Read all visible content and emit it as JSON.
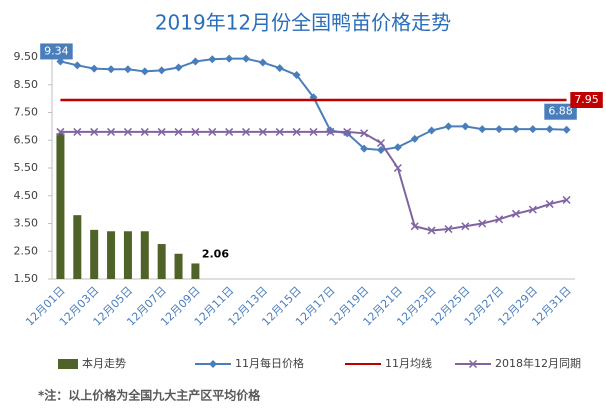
{
  "chart_data": {
    "type": "combo",
    "title": "2019年12月份全国鸭苗价格走势",
    "categories": [
      "12月01日",
      null,
      "12月03日",
      null,
      "12月05日",
      null,
      "12月07日",
      null,
      "12月09日",
      null,
      "12月11日",
      null,
      "12月13日",
      null,
      "12月15日",
      null,
      "12月17日",
      null,
      "12月19日",
      null,
      "12月21日",
      null,
      "12月23日",
      null,
      "12月25日",
      null,
      "12月27日",
      null,
      "12月29日",
      null,
      "12月31日"
    ],
    "series": [
      {
        "name": "本月走势",
        "type": "bar",
        "color": "#4f6228",
        "values": [
          6.75,
          3.8,
          3.27,
          3.22,
          3.22,
          3.22,
          2.76,
          2.41,
          2.06,
          null,
          null,
          null,
          null,
          null,
          null,
          null,
          null,
          null,
          null,
          null,
          null,
          null,
          null,
          null,
          null,
          null,
          null,
          null,
          null,
          null,
          null
        ]
      },
      {
        "name": "11月每日价格",
        "type": "line",
        "color": "#4a7ebb",
        "values": [
          9.34,
          9.2,
          9.08,
          9.06,
          9.06,
          8.98,
          9.02,
          9.12,
          9.34,
          9.42,
          9.44,
          9.44,
          9.3,
          9.1,
          8.85,
          8.05,
          6.85,
          6.75,
          6.2,
          6.15,
          6.25,
          6.55,
          6.85,
          7.0,
          7.0,
          6.9,
          6.9,
          6.9,
          6.9,
          6.9,
          6.88
        ]
      },
      {
        "name": "11月均线",
        "type": "line",
        "color": "#c00000",
        "values": [
          7.95,
          7.95,
          7.95,
          7.95,
          7.95,
          7.95,
          7.95,
          7.95,
          7.95,
          7.95,
          7.95,
          7.95,
          7.95,
          7.95,
          7.95,
          7.95,
          7.95,
          7.95,
          7.95,
          7.95,
          7.95,
          7.95,
          7.95,
          7.95,
          7.95,
          7.95,
          7.95,
          7.95,
          7.95,
          7.95,
          7.95
        ]
      },
      {
        "name": "2018年12月同期",
        "type": "line",
        "color": "#8064a2",
        "values": [
          6.8,
          6.8,
          6.8,
          6.8,
          6.8,
          6.8,
          6.8,
          6.8,
          6.8,
          6.8,
          6.8,
          6.8,
          6.8,
          6.8,
          6.8,
          6.8,
          6.8,
          6.8,
          6.75,
          6.4,
          5.5,
          3.4,
          3.25,
          3.3,
          3.4,
          3.5,
          3.65,
          3.85,
          4.0,
          4.2,
          4.35
        ]
      }
    ],
    "ylim": [
      1.5,
      9.5
    ],
    "yticks": [
      {
        "value": 1.5,
        "label": "1.50"
      },
      {
        "value": 2.5,
        "label": "2.50"
      },
      {
        "value": 3.5,
        "label": "3.50"
      },
      {
        "value": 4.5,
        "label": "4.50"
      },
      {
        "value": 5.5,
        "label": "5.50"
      },
      {
        "value": 6.5,
        "label": "6.50"
      },
      {
        "value": 7.5,
        "label": "7.50"
      },
      {
        "value": 8.5,
        "label": "8.50"
      },
      {
        "value": 9.5,
        "label": "9.50"
      }
    ],
    "grid": false,
    "legend": "bottom",
    "note": "*注：以上价格为全国九大主产区平均价格"
  }
}
